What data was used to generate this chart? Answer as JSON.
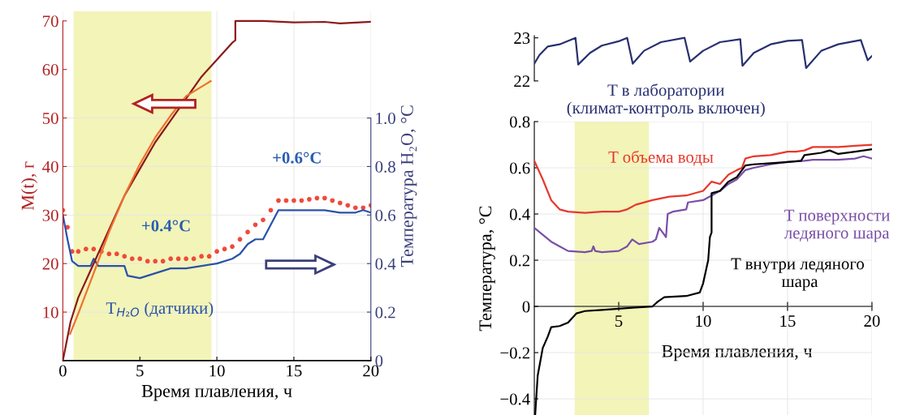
{
  "chart_data": [
    {
      "type": "line",
      "xlabel": "Время плавления, ч",
      "ylabel": "M(t), г",
      "y2label": "Температура H₂O, °C",
      "xlim": [
        0,
        20
      ],
      "xticks": [
        0,
        5,
        10,
        15,
        20
      ],
      "ylim": [
        0,
        72
      ],
      "yticks": [
        10,
        20,
        30,
        40,
        50,
        60,
        70
      ],
      "y2lim": [
        0,
        1.44
      ],
      "y2ticks": [
        0,
        0.2,
        0.4,
        0.6,
        0.8,
        {
          "value": 1,
          "label": "1.0"
        }
      ],
      "grid": true,
      "bands": [
        {
          "axis": "x",
          "from": 0.7,
          "to": 9.65,
          "color": "#f2f4b8"
        }
      ],
      "annotations": [
        "+0.4°C",
        "+0.6°C"
      ],
      "series": [
        {
          "type": "scatter",
          "axis": "y2",
          "color": "#f04a3a",
          "marker": "circle",
          "x": [
            0,
            0.3,
            0.6,
            1,
            1.5,
            2,
            2.5,
            3,
            3.5,
            4,
            4.5,
            5,
            5.5,
            6,
            6.5,
            7,
            7.5,
            8,
            8.5,
            9,
            9.5,
            10,
            10.5,
            11,
            11.5,
            12,
            12.5,
            13,
            13.5,
            14,
            14.5,
            15,
            15.5,
            16,
            16.5,
            17,
            17.5,
            18,
            18.5,
            19,
            19.5,
            20
          ],
          "values": [
            0.62,
            0.55,
            0.45,
            0.45,
            0.46,
            0.46,
            0.45,
            0.44,
            0.44,
            0.43,
            0.42,
            0.42,
            0.41,
            0.41,
            0.41,
            0.42,
            0.42,
            0.42,
            0.42,
            0.43,
            0.43,
            0.45,
            0.46,
            0.47,
            0.5,
            0.53,
            0.56,
            0.58,
            0.62,
            0.66,
            0.66,
            0.66,
            0.66,
            0.665,
            0.67,
            0.67,
            0.66,
            0.65,
            0.64,
            0.63,
            0.63,
            0.64
          ]
        },
        {
          "type": "line",
          "axis": "y2",
          "name": "T$_{H₂O}$ (датчики)",
          "color": "#2a52a8",
          "x": [
            0,
            0.3,
            0.6,
            1,
            1.8,
            2,
            2.3,
            4,
            4.2,
            5,
            6,
            7,
            8,
            9,
            10,
            11,
            11.5,
            12,
            12.5,
            13,
            13.5,
            14,
            15,
            16,
            17,
            18,
            19,
            19.5,
            20
          ],
          "values": [
            0.6,
            0.5,
            0.41,
            0.39,
            0.39,
            0.42,
            0.39,
            0.39,
            0.35,
            0.34,
            0.36,
            0.38,
            0.38,
            0.39,
            0.4,
            0.42,
            0.44,
            0.48,
            0.5,
            0.5,
            0.56,
            0.62,
            0.62,
            0.62,
            0.62,
            0.61,
            0.61,
            0.62,
            0.61
          ]
        },
        {
          "type": "line",
          "color": "#8b1a1a",
          "x": [
            0,
            0.5,
            1,
            2,
            3,
            4,
            5,
            6,
            7,
            8,
            9,
            10,
            11,
            11.2,
            11.2,
            13,
            15,
            17,
            18,
            20
          ],
          "values": [
            0,
            8,
            13,
            20,
            27,
            34,
            39.5,
            45,
            49.5,
            54,
            58.5,
            62,
            65.5,
            66,
            70,
            70,
            69.7,
            69.8,
            69.5,
            69.8
          ]
        },
        {
          "type": "line",
          "color": "#f07030",
          "x": [
            0.47,
            1,
            2,
            3,
            4,
            5,
            6,
            7,
            8,
            9.6
          ],
          "values": [
            5.5,
            9.7,
            18,
            26.5,
            34,
            40.5,
            46,
            50.5,
            54.5,
            57.6
          ]
        }
      ]
    },
    {
      "type": "line",
      "xlim": [
        0,
        20
      ],
      "ylim": [
        22,
        23.05
      ],
      "yticks": [
        22,
        23
      ],
      "tick_labels": "y",
      "series": [
        {
          "name": "T в лаборатории\n(климат-контроль включен)",
          "color": "#283070",
          "x": [
            0,
            0.3,
            0.8,
            1.5,
            2.44,
            2.6,
            3.3,
            4,
            5,
            5.5,
            5.83,
            6.5,
            7.5,
            8.9,
            9.23,
            10,
            11,
            12.2,
            12.33,
            13,
            14,
            15,
            15.86,
            16.1,
            17,
            18,
            19.34,
            19.75,
            20
          ],
          "values": [
            22.4,
            22.6,
            22.8,
            22.85,
            23.0,
            22.38,
            22.65,
            22.82,
            22.92,
            23.0,
            22.4,
            22.7,
            22.9,
            23.0,
            22.45,
            22.7,
            22.9,
            22.97,
            22.35,
            22.65,
            22.85,
            22.93,
            22.95,
            22.3,
            22.7,
            22.85,
            22.95,
            22.48,
            22.58
          ]
        }
      ]
    },
    {
      "type": "line",
      "xlabel": "Время плавления, ч",
      "ylabel": "Температура, °C",
      "xlim": [
        0,
        20
      ],
      "xticks": [
        5,
        10,
        15,
        20
      ],
      "ylim": [
        -0.47,
        0.8
      ],
      "yticks": [
        {
          "value": -0.4,
          "label": "−0.4"
        },
        {
          "value": -0.2,
          "label": "−0.2"
        },
        0,
        0.2,
        0.4,
        0.6,
        0.8
      ],
      "grid": true,
      "bands": [
        {
          "axis": "x",
          "from": 2.39,
          "to": 6.79,
          "color": "#f2f4b8"
        }
      ],
      "series": [
        {
          "name": "T объема воды",
          "color": "#e8382c",
          "x": [
            0,
            0.5,
            1,
            1.5,
            2,
            3,
            4,
            5,
            5.5,
            6,
            7,
            8,
            9,
            10,
            10.5,
            11,
            11.5,
            12,
            12.3,
            12.5,
            13,
            14,
            15,
            15.5,
            16,
            16.5,
            18,
            19,
            20
          ],
          "values": [
            0.63,
            0.55,
            0.46,
            0.42,
            0.41,
            0.405,
            0.41,
            0.41,
            0.42,
            0.44,
            0.46,
            0.475,
            0.48,
            0.5,
            0.54,
            0.53,
            0.57,
            0.59,
            0.6,
            0.64,
            0.65,
            0.655,
            0.67,
            0.67,
            0.675,
            0.69,
            0.69,
            0.695,
            0.7
          ]
        },
        {
          "name": "T поверхности\nледяного шара",
          "color": "#7a4fa6",
          "x": [
            0,
            0.5,
            1,
            1.5,
            2,
            3,
            3.4,
            3.5,
            3.6,
            4,
            5,
            5.5,
            5.8,
            6.2,
            7,
            7.2,
            7.4,
            7.7,
            7.8,
            7.9,
            8.2,
            9,
            9.1,
            10,
            10.5,
            11,
            11.5,
            12,
            12.5,
            13,
            14,
            15,
            16,
            16.5,
            18,
            19,
            19.5,
            20
          ],
          "values": [
            0.34,
            0.31,
            0.28,
            0.26,
            0.24,
            0.235,
            0.24,
            0.26,
            0.24,
            0.235,
            0.24,
            0.26,
            0.29,
            0.27,
            0.28,
            0.29,
            0.34,
            0.31,
            0.3,
            0.4,
            0.41,
            0.42,
            0.45,
            0.46,
            0.48,
            0.5,
            0.53,
            0.55,
            0.59,
            0.6,
            0.615,
            0.625,
            0.63,
            0.635,
            0.635,
            0.64,
            0.65,
            0.64
          ]
        },
        {
          "name": "T внутри ледяного\n шара",
          "color": "#000000",
          "x": [
            0.05,
            0.2,
            0.5,
            0.8,
            1,
            1.5,
            2,
            2.5,
            3,
            4,
            5,
            6,
            7,
            7.3,
            7.7,
            9,
            9.8,
            10,
            10.3,
            10.4,
            10.5,
            10.5,
            11,
            11.5,
            12,
            12.3,
            12.5,
            13,
            14,
            15,
            15.8,
            16,
            17,
            17.5,
            18,
            19,
            20
          ],
          "values": [
            -0.47,
            -0.3,
            -0.18,
            -0.13,
            -0.09,
            -0.085,
            -0.07,
            -0.03,
            -0.02,
            -0.015,
            -0.01,
            -0.005,
            0.0,
            0.02,
            0.04,
            0.045,
            0.06,
            0.1,
            0.2,
            0.3,
            0.32,
            0.49,
            0.5,
            0.54,
            0.56,
            0.59,
            0.61,
            0.615,
            0.62,
            0.625,
            0.63,
            0.655,
            0.665,
            0.675,
            0.66,
            0.67,
            0.68
          ]
        }
      ]
    }
  ]
}
